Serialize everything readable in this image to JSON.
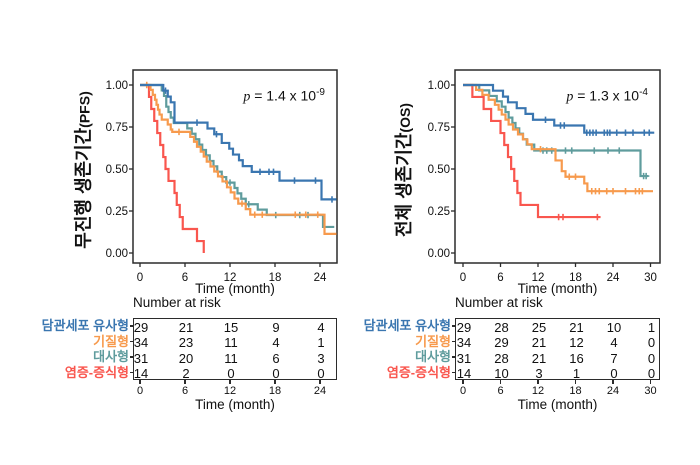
{
  "figure": {
    "background": "#ffffff",
    "axis_color": "#2b2b2b",
    "text_color": "#111111"
  },
  "colors": {
    "cholangiocyte_like": "#3A76B0",
    "stromal": "#F79A4D",
    "metabolic": "#5F9C9D",
    "inflammatory_proliferative": "#F9564E"
  },
  "chart_data": [
    {
      "type": "line",
      "subtype": "kaplan-meier-step",
      "ylabel": "무진행 생존기간",
      "ylabel_suffix": "(PFS)",
      "xlabel": "Time (month)",
      "p_prefix": "p",
      "p_base": " = 1.4 x 10",
      "p_exp": "-9",
      "xlim": [
        0,
        26
      ],
      "ylim": [
        0,
        1
      ],
      "x_ticks": [
        0,
        6,
        12,
        18,
        24
      ],
      "y_ticks": [
        0,
        0.25,
        0.5,
        0.75,
        1
      ],
      "grid": false,
      "legend": "none",
      "series": [
        {
          "key": "cholangiocyte-like",
          "name": "담관세포 유사형",
          "color": "#3A76B0",
          "points": [
            [
              0,
              1
            ],
            [
              3.1,
              0.966
            ],
            [
              3.7,
              0.931
            ],
            [
              4.1,
              0.897
            ],
            [
              4.6,
              0.776
            ],
            [
              9.0,
              0.741
            ],
            [
              9.9,
              0.707
            ],
            [
              10.9,
              0.655
            ],
            [
              11.9,
              0.621
            ],
            [
              12.4,
              0.586
            ],
            [
              13.2,
              0.552
            ],
            [
              13.7,
              0.517
            ],
            [
              14.9,
              0.483
            ],
            [
              18.6,
              0.431
            ],
            [
              24.2,
              0.319
            ],
            [
              26.2,
              0.319
            ]
          ],
          "censors": [
            [
              3.4,
              0.966
            ],
            [
              7.6,
              0.776
            ],
            [
              10.2,
              0.707
            ],
            [
              16.0,
              0.483
            ],
            [
              17.2,
              0.483
            ],
            [
              17.8,
              0.483
            ],
            [
              20.6,
              0.431
            ],
            [
              23.4,
              0.431
            ],
            [
              25.6,
              0.319
            ]
          ]
        },
        {
          "key": "stromal",
          "name": "기질형",
          "color": "#F79A4D",
          "points": [
            [
              0,
              1
            ],
            [
              1.4,
              0.971
            ],
            [
              1.7,
              0.941
            ],
            [
              2.0,
              0.912
            ],
            [
              2.2,
              0.882
            ],
            [
              2.4,
              0.853
            ],
            [
              2.6,
              0.824
            ],
            [
              2.9,
              0.794
            ],
            [
              3.7,
              0.765
            ],
            [
              4.1,
              0.735
            ],
            [
              4.3,
              0.721
            ],
            [
              6.7,
              0.691
            ],
            [
              7.2,
              0.662
            ],
            [
              7.6,
              0.632
            ],
            [
              8.1,
              0.603
            ],
            [
              8.5,
              0.574
            ],
            [
              8.9,
              0.544
            ],
            [
              9.4,
              0.515
            ],
            [
              9.9,
              0.485
            ],
            [
              10.4,
              0.456
            ],
            [
              11.0,
              0.426
            ],
            [
              11.6,
              0.391
            ],
            [
              12.1,
              0.361
            ],
            [
              12.6,
              0.324
            ],
            [
              13.1,
              0.294
            ],
            [
              14.1,
              0.261
            ],
            [
              14.7,
              0.228
            ],
            [
              24.6,
              0.114
            ],
            [
              26.2,
              0.114
            ]
          ],
          "censors": [
            [
              0.9,
              1.0
            ],
            [
              5.2,
              0.721
            ],
            [
              13.6,
              0.294
            ],
            [
              15.3,
              0.228
            ],
            [
              16.3,
              0.228
            ],
            [
              20.7,
              0.228
            ],
            [
              22.1,
              0.228
            ],
            [
              23.7,
              0.228
            ]
          ]
        },
        {
          "key": "metabolic",
          "name": "대사형",
          "color": "#5F9C9D",
          "points": [
            [
              0,
              1
            ],
            [
              2.9,
              0.968
            ],
            [
              3.2,
              0.935
            ],
            [
              3.5,
              0.871
            ],
            [
              3.8,
              0.839
            ],
            [
              4.1,
              0.806
            ],
            [
              4.5,
              0.774
            ],
            [
              6.3,
              0.742
            ],
            [
              6.9,
              0.71
            ],
            [
              7.4,
              0.677
            ],
            [
              7.9,
              0.645
            ],
            [
              8.3,
              0.613
            ],
            [
              8.8,
              0.581
            ],
            [
              9.3,
              0.548
            ],
            [
              9.8,
              0.516
            ],
            [
              10.3,
              0.484
            ],
            [
              10.9,
              0.452
            ],
            [
              11.5,
              0.419
            ],
            [
              12.6,
              0.387
            ],
            [
              13.0,
              0.355
            ],
            [
              13.5,
              0.323
            ],
            [
              14.1,
              0.29
            ],
            [
              15.7,
              0.258
            ],
            [
              16.9,
              0.226
            ],
            [
              24.4,
              0.155
            ],
            [
              25.9,
              0.155
            ]
          ],
          "censors": [
            [
              12.0,
              0.419
            ],
            [
              14.5,
              0.29
            ],
            [
              18.1,
              0.226
            ],
            [
              21.3,
              0.226
            ],
            [
              22.4,
              0.226
            ]
          ]
        },
        {
          "key": "inflammatory-proliferative",
          "name": "염증-증식형",
          "color": "#F9564E",
          "points": [
            [
              0,
              1
            ],
            [
              1.2,
              0.929
            ],
            [
              1.5,
              0.857
            ],
            [
              1.9,
              0.786
            ],
            [
              2.3,
              0.714
            ],
            [
              2.7,
              0.643
            ],
            [
              3.1,
              0.571
            ],
            [
              3.4,
              0.5
            ],
            [
              3.8,
              0.429
            ],
            [
              4.6,
              0.357
            ],
            [
              4.9,
              0.286
            ],
            [
              5.3,
              0.214
            ],
            [
              5.7,
              0.143
            ],
            [
              7.6,
              0.071
            ],
            [
              8.5,
              0.0
            ]
          ],
          "censors": []
        }
      ],
      "risk_table": {
        "title": "Number at risk",
        "xlabel": "Time (month)",
        "ticks": [
          0,
          6,
          12,
          18,
          24
        ],
        "rows": [
          {
            "name": "담관세포 유사형",
            "color": "#3A76B0",
            "values": [
              29,
              21,
              15,
              9,
              4
            ]
          },
          {
            "name": "기질형",
            "color": "#F79A4D",
            "values": [
              34,
              23,
              11,
              4,
              1
            ]
          },
          {
            "name": "대사형",
            "color": "#5F9C9D",
            "values": [
              31,
              20,
              11,
              6,
              3
            ]
          },
          {
            "name": "염증-증식형",
            "color": "#F9564E",
            "values": [
              14,
              2,
              0,
              0,
              0
            ]
          }
        ]
      }
    },
    {
      "type": "line",
      "subtype": "kaplan-meier-step",
      "ylabel": "전체 생존기간",
      "ylabel_suffix": "(OS)",
      "xlabel": "Time (month)",
      "p_prefix": "p",
      "p_base": " = 1.3 x 10",
      "p_exp": "-4",
      "xlim": [
        0,
        32
      ],
      "ylim": [
        0,
        1
      ],
      "x_ticks": [
        0,
        6,
        12,
        18,
        24,
        30
      ],
      "y_ticks": [
        0,
        0.25,
        0.5,
        0.75,
        1
      ],
      "grid": false,
      "legend": "none",
      "series": [
        {
          "key": "cholangiocyte-like",
          "name": "담관세포 유사형",
          "color": "#3A76B0",
          "points": [
            [
              0,
              1
            ],
            [
              4.8,
              0.966
            ],
            [
              6.4,
              0.931
            ],
            [
              7.2,
              0.897
            ],
            [
              8.6,
              0.862
            ],
            [
              10.0,
              0.828
            ],
            [
              11.2,
              0.793
            ],
            [
              14.6,
              0.759
            ],
            [
              19.4,
              0.716
            ],
            [
              30.6,
              0.716
            ]
          ],
          "censors": [
            [
              13.2,
              0.793
            ],
            [
              15.6,
              0.759
            ],
            [
              16.2,
              0.759
            ],
            [
              19.8,
              0.716
            ],
            [
              20.3,
              0.716
            ],
            [
              20.8,
              0.716
            ],
            [
              21.3,
              0.716
            ],
            [
              22.6,
              0.716
            ],
            [
              23.1,
              0.716
            ],
            [
              23.5,
              0.716
            ],
            [
              24.6,
              0.716
            ],
            [
              26.0,
              0.716
            ],
            [
              27.2,
              0.716
            ],
            [
              29.0,
              0.716
            ],
            [
              29.8,
              0.716
            ]
          ]
        },
        {
          "key": "stromal",
          "name": "기질형",
          "color": "#F79A4D",
          "points": [
            [
              0,
              1
            ],
            [
              2.1,
              0.971
            ],
            [
              3.1,
              0.941
            ],
            [
              4.1,
              0.912
            ],
            [
              5.1,
              0.882
            ],
            [
              5.7,
              0.853
            ],
            [
              6.2,
              0.824
            ],
            [
              6.8,
              0.794
            ],
            [
              7.3,
              0.765
            ],
            [
              8.0,
              0.735
            ],
            [
              8.8,
              0.706
            ],
            [
              9.6,
              0.676
            ],
            [
              10.3,
              0.647
            ],
            [
              11.0,
              0.618
            ],
            [
              14.8,
              0.551
            ],
            [
              15.8,
              0.487
            ],
            [
              16.4,
              0.454
            ],
            [
              19.4,
              0.414
            ],
            [
              19.9,
              0.368
            ],
            [
              30.4,
              0.368
            ]
          ],
          "censors": [
            [
              12.4,
              0.618
            ],
            [
              17.0,
              0.454
            ],
            [
              18.0,
              0.454
            ],
            [
              20.6,
              0.368
            ],
            [
              21.2,
              0.368
            ],
            [
              21.8,
              0.368
            ],
            [
              23.0,
              0.368
            ],
            [
              24.0,
              0.368
            ],
            [
              26.0,
              0.368
            ],
            [
              27.6,
              0.368
            ],
            [
              28.2,
              0.368
            ],
            [
              28.7,
              0.368
            ]
          ]
        },
        {
          "key": "metabolic",
          "name": "대사형",
          "color": "#5F9C9D",
          "points": [
            [
              0,
              1
            ],
            [
              2.6,
              0.968
            ],
            [
              4.2,
              0.935
            ],
            [
              5.4,
              0.903
            ],
            [
              6.2,
              0.871
            ],
            [
              6.8,
              0.839
            ],
            [
              7.3,
              0.806
            ],
            [
              7.9,
              0.774
            ],
            [
              8.4,
              0.742
            ],
            [
              9.0,
              0.71
            ],
            [
              9.6,
              0.677
            ],
            [
              10.2,
              0.645
            ],
            [
              11.4,
              0.61
            ],
            [
              28.4,
              0.458
            ],
            [
              29.6,
              0.458
            ]
          ],
          "censors": [
            [
              12.8,
              0.61
            ],
            [
              13.4,
              0.61
            ],
            [
              14.2,
              0.61
            ],
            [
              16.4,
              0.61
            ],
            [
              17.4,
              0.61
            ],
            [
              21.0,
              0.61
            ],
            [
              23.2,
              0.61
            ],
            [
              25.0,
              0.61
            ],
            [
              28.9,
              0.458
            ],
            [
              29.3,
              0.458
            ]
          ]
        },
        {
          "key": "inflammatory-proliferative",
          "name": "염증-증식형",
          "color": "#F9564E",
          "points": [
            [
              0,
              1
            ],
            [
              1.5,
              0.929
            ],
            [
              3.3,
              0.857
            ],
            [
              4.5,
              0.786
            ],
            [
              6.0,
              0.714
            ],
            [
              6.6,
              0.643
            ],
            [
              7.2,
              0.571
            ],
            [
              7.7,
              0.5
            ],
            [
              8.2,
              0.429
            ],
            [
              8.7,
              0.357
            ],
            [
              9.2,
              0.286
            ],
            [
              12.0,
              0.214
            ],
            [
              22.0,
              0.214
            ]
          ],
          "censors": [
            [
              15.3,
              0.214
            ],
            [
              16.0,
              0.214
            ],
            [
              21.5,
              0.214
            ]
          ]
        }
      ],
      "risk_table": {
        "title": "Number at risk",
        "xlabel": "Time (month)",
        "ticks": [
          0,
          6,
          12,
          18,
          24,
          30
        ],
        "rows": [
          {
            "name": "담관세포 유사형",
            "color": "#3A76B0",
            "values": [
              29,
              28,
              25,
              21,
              10,
              1
            ]
          },
          {
            "name": "기질형",
            "color": "#F79A4D",
            "values": [
              34,
              29,
              21,
              12,
              4,
              0
            ]
          },
          {
            "name": "대사형",
            "color": "#5F9C9D",
            "values": [
              31,
              28,
              21,
              16,
              7,
              0
            ]
          },
          {
            "name": "염증-증식형",
            "color": "#F9564E",
            "values": [
              14,
              10,
              3,
              1,
              0,
              0
            ]
          }
        ]
      }
    }
  ]
}
